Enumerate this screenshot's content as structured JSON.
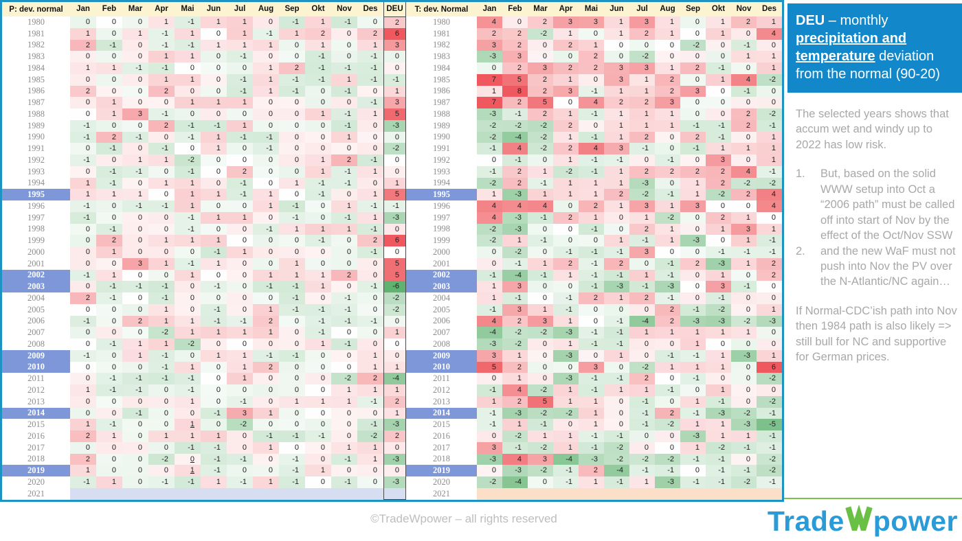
{
  "chart_data": [
    {
      "type": "heatmap",
      "title": "P: dev. normal",
      "columns": [
        "Jan",
        "Feb",
        "Mar",
        "Apr",
        "Mai",
        "Jun",
        "Jul",
        "Aug",
        "Sep",
        "Okt",
        "Nov",
        "Des",
        "DEU"
      ],
      "highlighted_years": [
        1995,
        2002,
        2003,
        2009,
        2010,
        2014,
        2019
      ],
      "underlined_cells": [
        [
          2015,
          4
        ],
        [
          2018,
          4
        ],
        [
          2019,
          4
        ]
      ],
      "selected_column": "DEU",
      "empty_row_color": "#d8def1",
      "color_scale": "positive=red, negative=green, 0=white",
      "years": [
        1980,
        1981,
        1982,
        1983,
        1984,
        1985,
        1986,
        1987,
        1988,
        1989,
        1990,
        1991,
        1992,
        1993,
        1994,
        1995,
        1996,
        1997,
        1998,
        1999,
        2000,
        2001,
        2002,
        2003,
        2004,
        2005,
        2006,
        2007,
        2008,
        2009,
        2010,
        2011,
        2012,
        2013,
        2014,
        2015,
        2016,
        2017,
        2018,
        2019,
        2020,
        2021
      ],
      "values": [
        [
          0,
          0,
          0,
          1,
          -1,
          1,
          1,
          0,
          -1,
          1,
          -1,
          0,
          2
        ],
        [
          1,
          0,
          1,
          -1,
          1,
          0,
          1,
          -1,
          1,
          2,
          0,
          2,
          6
        ],
        [
          2,
          -1,
          0,
          -1,
          -1,
          1,
          1,
          1,
          0,
          1,
          0,
          1,
          3
        ],
        [
          0,
          0,
          0,
          1,
          1,
          0,
          -1,
          0,
          0,
          -1,
          0,
          -1,
          0
        ],
        [
          1,
          1,
          -1,
          -1,
          0,
          0,
          0,
          1,
          2,
          -1,
          -1,
          -1,
          0
        ],
        [
          0,
          0,
          0,
          1,
          1,
          0,
          -1,
          1,
          -1,
          -1,
          1,
          -1,
          -1
        ],
        [
          2,
          0,
          0,
          2,
          0,
          0,
          -1,
          1,
          -1,
          0,
          -1,
          0,
          1
        ],
        [
          0,
          1,
          0,
          0,
          1,
          1,
          1,
          0,
          0,
          0,
          0,
          -1,
          3
        ],
        [
          0,
          1,
          3,
          -1,
          0,
          0,
          0,
          0,
          0,
          1,
          -1,
          1,
          5
        ],
        [
          -1,
          0,
          0,
          2,
          -1,
          -1,
          1,
          0,
          0,
          0,
          -1,
          0,
          -3
        ],
        [
          -1,
          2,
          -1,
          0,
          -1,
          1,
          -1,
          -1,
          0,
          0,
          1,
          0,
          0
        ],
        [
          0,
          -1,
          0,
          -1,
          0,
          1,
          0,
          -1,
          0,
          0,
          0,
          0,
          -2
        ],
        [
          -1,
          0,
          1,
          1,
          -2,
          0,
          0,
          0,
          0,
          1,
          2,
          -1,
          0
        ],
        [
          0,
          -1,
          -1,
          0,
          -1,
          0,
          2,
          0,
          0,
          1,
          -1,
          1,
          0
        ],
        [
          1,
          -1,
          0,
          1,
          1,
          0,
          -1,
          0,
          1,
          -1,
          -1,
          0,
          1
        ],
        [
          1,
          1,
          1,
          0,
          1,
          1,
          -1,
          1,
          0,
          -1,
          0,
          1,
          5
        ],
        [
          -1,
          0,
          -1,
          -1,
          1,
          0,
          0,
          1,
          -1,
          0,
          1,
          -1,
          -1
        ],
        [
          -1,
          0,
          0,
          0,
          -1,
          1,
          1,
          0,
          -1,
          0,
          -1,
          1,
          -3
        ],
        [
          0,
          -1,
          0,
          0,
          -1,
          0,
          0,
          -1,
          1,
          1,
          1,
          -1,
          0
        ],
        [
          0,
          2,
          0,
          1,
          1,
          1,
          0,
          0,
          0,
          -1,
          0,
          2,
          6
        ],
        [
          0,
          1,
          0,
          0,
          0,
          -1,
          1,
          0,
          0,
          0,
          0,
          -1,
          0
        ],
        [
          0,
          0,
          3,
          1,
          -1,
          1,
          0,
          0,
          1,
          0,
          0,
          0,
          5
        ],
        [
          -1,
          1,
          0,
          0,
          1,
          0,
          0,
          1,
          1,
          1,
          2,
          0,
          5
        ],
        [
          0,
          -1,
          -1,
          -1,
          0,
          -1,
          0,
          -1,
          -1,
          1,
          0,
          -1,
          -6
        ],
        [
          2,
          -1,
          0,
          -1,
          0,
          0,
          0,
          0,
          -1,
          0,
          -1,
          0,
          -2
        ],
        [
          0,
          0,
          0,
          1,
          0,
          -1,
          0,
          1,
          -1,
          -1,
          -1,
          0,
          -2
        ],
        [
          -1,
          0,
          2,
          1,
          1,
          -1,
          -1,
          2,
          0,
          -1,
          -1,
          -1,
          0
        ],
        [
          0,
          0,
          0,
          -2,
          1,
          1,
          1,
          1,
          0,
          -1,
          0,
          0,
          1
        ],
        [
          0,
          -1,
          1,
          1,
          -2,
          0,
          0,
          0,
          0,
          1,
          -1,
          0,
          0
        ],
        [
          -1,
          0,
          1,
          -1,
          0,
          1,
          1,
          -1,
          -1,
          0,
          0,
          1,
          0
        ],
        [
          0,
          0,
          0,
          -1,
          1,
          0,
          1,
          2,
          0,
          0,
          0,
          1,
          1
        ],
        [
          0,
          -1,
          -1,
          -1,
          -1,
          0,
          1,
          0,
          0,
          0,
          -2,
          2,
          -4
        ],
        [
          1,
          -1,
          -1,
          0,
          -1,
          0,
          0,
          0,
          0,
          0,
          1,
          1,
          1
        ],
        [
          0,
          0,
          0,
          0,
          1,
          0,
          -1,
          0,
          1,
          1,
          1,
          -1,
          2
        ],
        [
          0,
          0,
          -1,
          0,
          0,
          -1,
          3,
          1,
          0,
          0,
          0,
          0,
          1
        ],
        [
          1,
          -1,
          0,
          0,
          1,
          0,
          -2,
          0,
          0,
          0,
          0,
          -1,
          -3
        ],
        [
          2,
          1,
          0,
          1,
          1,
          1,
          0,
          -1,
          -1,
          -1,
          0,
          -2,
          2
        ],
        [
          0,
          0,
          0,
          0,
          -1,
          -1,
          0,
          1,
          0,
          0,
          1,
          1,
          0
        ],
        [
          2,
          0,
          0,
          -2,
          0,
          -1,
          -1,
          0,
          -1,
          0,
          -1,
          1,
          -3
        ],
        [
          1,
          0,
          0,
          0,
          1,
          -1,
          0,
          0,
          -1,
          1,
          0,
          0,
          0
        ],
        [
          -1,
          1,
          0,
          -1,
          -1,
          1,
          -1,
          1,
          -1,
          0,
          -1,
          0,
          -3
        ],
        []
      ]
    },
    {
      "type": "heatmap",
      "title": "T: dev. Normal",
      "columns": [
        "Jan",
        "Feb",
        "Mar",
        "Apr",
        "Mai",
        "Jun",
        "Jul",
        "Aug",
        "Sep",
        "Okt",
        "Nov",
        "Des"
      ],
      "highlighted_years": [
        1995,
        2002,
        2003,
        2009,
        2010,
        2014,
        2019
      ],
      "underlined_cells": [],
      "empty_row_color": "#fbdfc8",
      "color_scale": "positive=red, negative=green, 0=white",
      "years": [
        1980,
        1981,
        1982,
        1983,
        1984,
        1985,
        1986,
        1987,
        1988,
        1989,
        1990,
        1991,
        1992,
        1993,
        1994,
        1995,
        1996,
        1997,
        1998,
        1999,
        2000,
        2001,
        2002,
        2003,
        2004,
        2005,
        2006,
        2007,
        2008,
        2009,
        2010,
        2011,
        2012,
        2013,
        2014,
        2015,
        2016,
        2017,
        2018,
        2019,
        2020,
        2021
      ],
      "values": [
        [
          4,
          0,
          2,
          3,
          3,
          1,
          3,
          1,
          0,
          1,
          2,
          1
        ],
        [
          2,
          2,
          -2,
          1,
          0,
          1,
          2,
          1,
          0,
          1,
          0,
          4
        ],
        [
          3,
          2,
          0,
          2,
          1,
          0,
          0,
          0,
          -2,
          0,
          -1,
          0
        ],
        [
          -3,
          3,
          0,
          0,
          2,
          0,
          -2,
          0,
          0,
          0,
          1,
          1
        ],
        [
          0,
          2,
          3,
          2,
          2,
          3,
          3,
          1,
          2,
          -1,
          0,
          1
        ],
        [
          7,
          5,
          2,
          1,
          0,
          3,
          1,
          2,
          0,
          1,
          4,
          -2
        ],
        [
          1,
          8,
          2,
          3,
          -1,
          1,
          1,
          2,
          3,
          0,
          -1,
          0
        ],
        [
          7,
          2,
          5,
          0,
          4,
          2,
          2,
          3,
          0,
          0,
          0,
          0
        ],
        [
          -3,
          -1,
          2,
          1,
          -1,
          1,
          1,
          1,
          0,
          0,
          2,
          -2
        ],
        [
          -2,
          -2,
          -2,
          2,
          0,
          1,
          1,
          1,
          -1,
          -1,
          2,
          -1
        ],
        [
          -2,
          -4,
          -2,
          1,
          -1,
          1,
          2,
          0,
          2,
          -1,
          0,
          1
        ],
        [
          -1,
          4,
          -2,
          2,
          4,
          3,
          -1,
          0,
          -1,
          1,
          1,
          1
        ],
        [
          0,
          -1,
          0,
          1,
          -1,
          -1,
          0,
          -1,
          0,
          3,
          0,
          1
        ],
        [
          -1,
          2,
          1,
          -2,
          -1,
          1,
          2,
          2,
          2,
          2,
          4,
          -1
        ],
        [
          -2,
          2,
          -1,
          1,
          1,
          1,
          -3,
          0,
          1,
          2,
          -2,
          -2
        ],
        [
          1,
          -3,
          1,
          1,
          1,
          2,
          -2,
          -1,
          1,
          -2,
          2,
          4
        ],
        [
          4,
          4,
          4,
          0,
          2,
          1,
          3,
          1,
          3,
          0,
          0,
          4
        ],
        [
          4,
          -3,
          -1,
          2,
          1,
          0,
          1,
          -2,
          0,
          2,
          1,
          0
        ],
        [
          -2,
          -3,
          0,
          0,
          -1,
          0,
          2,
          1,
          0,
          1,
          3,
          1
        ],
        [
          -2,
          1,
          -1,
          0,
          0,
          1,
          -1,
          1,
          -3,
          0,
          1,
          -1
        ],
        [
          0,
          -2,
          0,
          -1,
          -1,
          -1,
          3,
          0,
          0,
          -1,
          -1,
          -1
        ],
        [
          0,
          -1,
          1,
          2,
          -1,
          2,
          0,
          -1,
          2,
          -3,
          1,
          2
        ],
        [
          -1,
          -4,
          -1,
          1,
          -1,
          -1,
          1,
          -1,
          0,
          1,
          0,
          2
        ],
        [
          1,
          3,
          0,
          0,
          -1,
          -3,
          -1,
          -3,
          0,
          3,
          -1,
          0
        ],
        [
          1,
          -1,
          0,
          -1,
          2,
          1,
          2,
          -1,
          0,
          -1,
          0,
          0
        ],
        [
          -1,
          3,
          1,
          -1,
          0,
          0,
          0,
          2,
          -1,
          -2,
          0,
          1
        ],
        [
          4,
          2,
          3,
          1,
          0,
          -1,
          -4,
          2,
          -3,
          -3,
          -2,
          -3
        ],
        [
          -4,
          -2,
          -2,
          -3,
          -1,
          -1,
          1,
          1,
          1,
          1,
          1,
          0
        ],
        [
          -3,
          -2,
          0,
          1,
          -1,
          -1,
          0,
          0,
          1,
          0,
          0,
          0
        ],
        [
          3,
          1,
          0,
          -3,
          0,
          1,
          0,
          -1,
          -1,
          1,
          -3,
          1
        ],
        [
          5,
          2,
          0,
          0,
          3,
          0,
          -2,
          1,
          1,
          1,
          0,
          6
        ],
        [
          0,
          1,
          0,
          -3,
          -1,
          -1,
          2,
          0,
          -1,
          0,
          0,
          -2
        ],
        [
          -1,
          4,
          -2,
          1,
          -1,
          1,
          1,
          -1,
          0,
          1,
          0,
          0
        ],
        [
          1,
          2,
          5,
          1,
          1,
          0,
          -1,
          0,
          1,
          -1,
          0,
          -2
        ],
        [
          -1,
          -3,
          -2,
          -2,
          1,
          0,
          -1,
          2,
          -1,
          -3,
          -2,
          -1
        ],
        [
          -1,
          1,
          -1,
          0,
          1,
          0,
          -1,
          -2,
          1,
          1,
          -3,
          -5
        ],
        [
          0,
          -2,
          1,
          1,
          -1,
          -1,
          0,
          0,
          -3,
          1,
          1,
          -1
        ],
        [
          3,
          -1,
          -2,
          1,
          -1,
          -2,
          0,
          0,
          1,
          -2,
          -1,
          -1
        ],
        [
          -3,
          4,
          3,
          -4,
          -3,
          -2,
          -2,
          -2,
          -1,
          -1,
          0,
          -2
        ],
        [
          0,
          -3,
          -2,
          -1,
          2,
          -4,
          -1,
          -1,
          0,
          -1,
          -1,
          -2
        ],
        [
          -2,
          -4,
          0,
          -1,
          1,
          -1,
          1,
          -3,
          -1,
          -1,
          -2,
          -1
        ],
        []
      ]
    }
  ],
  "sidebar": {
    "title_segments": [
      {
        "text": "DEU",
        "bold": true
      },
      {
        "text": " – monthly ",
        "bold": false
      },
      {
        "text": "precipitation and temperature",
        "bold": true,
        "underline": true
      },
      {
        "text": " deviation from the normal (90-20)",
        "bold": false
      }
    ],
    "paragraph1": "The selected years shows that accum wet and windy up to 2022 has low risk.",
    "list_numbers": [
      "1.",
      "2."
    ],
    "list_items": [
      "But, based on the solid WWW setup into Oct a “2006 path” must be called off into start of Nov by the effect of the Oct/Nov SSW",
      "and the new WaF must not push into Nov the PV over the N-Atlantic/NC again…"
    ],
    "paragraph2": "If Normal-CDC’ish path into Nov then 1984 path is also likely => still bull for NC and supportive for German prices."
  },
  "footer": {
    "copyright": "©TradeWpower – all rights reserved"
  },
  "logo": {
    "part1": "Trade",
    "w": "W",
    "part2": "power"
  },
  "colors": {
    "frame_teal": "#1c93c3",
    "header_cream": "#fcf3d1",
    "highlight_blue": "#7d97d8",
    "title_box_blue": "#1287ca",
    "positive_red": "#ee585e",
    "negative_green": "#60b270",
    "precip_empty_row": "#d8def1",
    "temp_empty_row": "#fbdfc8",
    "logo_blue": "#2a9bd6",
    "logo_green": "#6abf45",
    "sidebar_text_gray": "#a8a8a8"
  }
}
